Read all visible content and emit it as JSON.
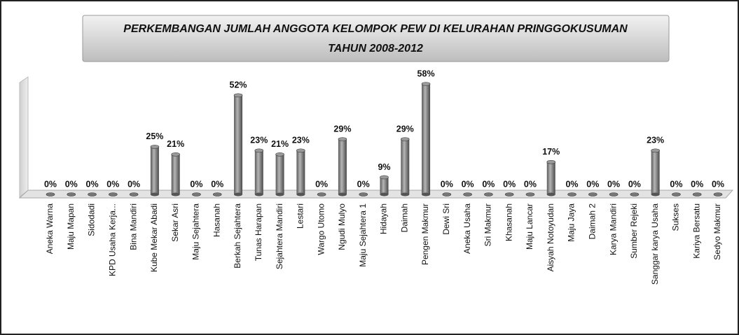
{
  "chart_data": {
    "type": "bar",
    "title": "PERKEMBANGAN JUMLAH ANGGOTA KELOMPOK PEW DI KELURAHAN PRINGGOKUSUMAN",
    "subtitle": "TAHUN 2008-2012",
    "categories": [
      "Aneka Warna",
      "Maju Mapan",
      "Sidodadi",
      "KPD Usaha Kerja...",
      "Bina Mandiri",
      "Kube Mekar Abadi",
      "Sekar Asri",
      "Maju Sejahtera",
      "Hasanah",
      "Berkah Sejahtera",
      "Tunas Harapan",
      "Sejahtera Mandiri",
      "Lestari",
      "Wargo Utomo",
      "Ngudi Mulyo",
      "Maju Sejahtera 1",
      "Hidayah",
      "Daimah",
      "Pengen Makmur",
      "Dewi Sri",
      "Aneka Usaha",
      "Sri Makmur",
      "Khasanah",
      "Maju Lancar",
      "Aisyah Notoyudan",
      "Maju Jaya",
      "Daimah 2",
      "Karya Mandiri",
      "Sumber Rejeki",
      "Sanggar karya Usaha",
      "Sukses",
      "Kariya Bersatu",
      "Sedyo Makmur"
    ],
    "values": [
      0,
      0,
      0,
      0,
      0,
      25,
      21,
      0,
      0,
      52,
      23,
      21,
      23,
      0,
      29,
      0,
      9,
      29,
      58,
      0,
      0,
      0,
      0,
      0,
      17,
      0,
      0,
      0,
      0,
      23,
      0,
      0,
      0
    ],
    "value_labels": [
      "0%",
      "0%",
      "0%",
      "0%",
      "0%",
      "25%",
      "21%",
      "0%",
      "0%",
      "52%",
      "23%",
      "21%",
      "23%",
      "0%",
      "29%",
      "0%",
      "9%",
      "29%",
      "58%",
      "0%",
      "0%",
      "0%",
      "0%",
      "0%",
      "17%",
      "0%",
      "0%",
      "0%",
      "0%",
      "23%",
      "0%",
      "0%",
      "0%"
    ],
    "color": "#8c8c8c"
  }
}
